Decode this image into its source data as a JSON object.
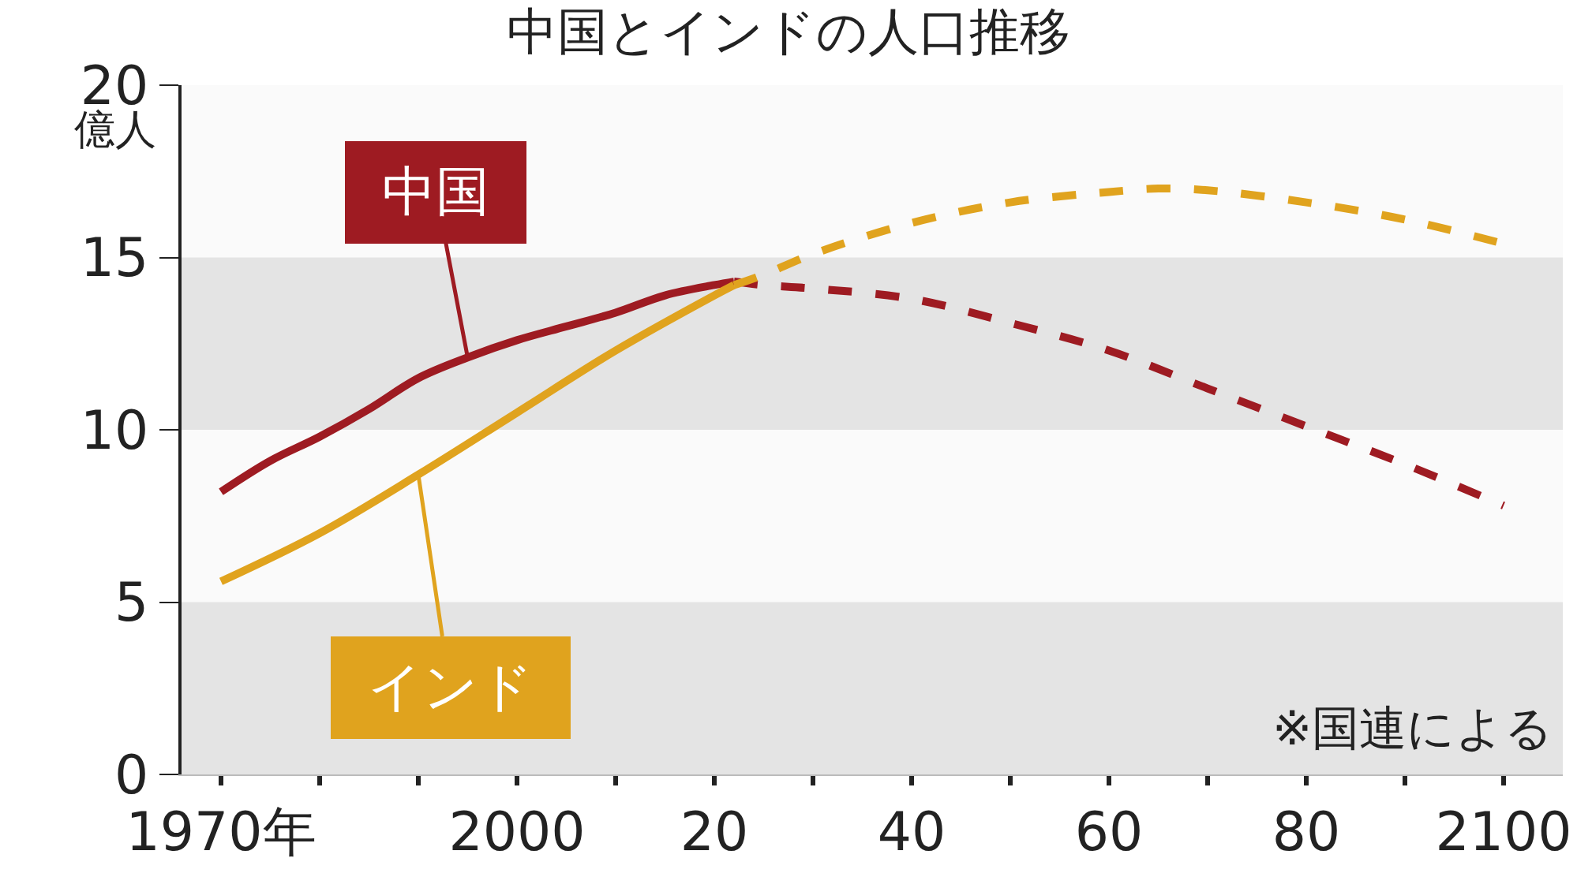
{
  "chart_data": {
    "type": "line",
    "title": "中国とインドの人口推移",
    "ylabel": "億人",
    "xlim": [
      1966,
      2106
    ],
    "ylim": [
      0,
      20
    ],
    "xticks": [
      {
        "value": 1970,
        "label": "1970年"
      },
      {
        "value": 1980,
        "label": null
      },
      {
        "value": 1990,
        "label": null
      },
      2000,
      {
        "value": 2010,
        "label": null
      },
      {
        "value": 2020,
        "label": "20"
      },
      {
        "value": 2030,
        "label": null
      },
      {
        "value": 2040,
        "label": "40"
      },
      {
        "value": 2050,
        "label": null
      },
      {
        "value": 2060,
        "label": "60"
      },
      {
        "value": 2070,
        "label": null
      },
      {
        "value": 2080,
        "label": "80"
      },
      {
        "value": 2090,
        "label": null
      },
      2100
    ],
    "yticks": [
      0,
      5,
      10,
      15,
      20
    ],
    "grid": false,
    "legend": false,
    "marker": "none",
    "bands": [
      {
        "axis": "y",
        "from": 0,
        "to": 5,
        "color": "#e4e4e4"
      },
      {
        "axis": "y",
        "from": 10,
        "to": 15,
        "color": "#e4e4e4"
      }
    ],
    "annotations": [
      "※国連による"
    ],
    "series": [
      {
        "name": "中国",
        "color": "#9e1b22",
        "line_style": "solid",
        "x": [
          1970,
          1975,
          1980,
          1985,
          1990,
          1995,
          2000,
          2005,
          2010,
          2015,
          2020,
          2022
        ],
        "values": [
          8.2,
          9.1,
          9.8,
          10.6,
          11.5,
          12.1,
          12.6,
          13.0,
          13.4,
          13.9,
          14.2,
          14.3
        ]
      },
      {
        "color": "#9e1b22",
        "line_style": "dashed",
        "x": [
          2022,
          2025,
          2030,
          2040,
          2050,
          2060,
          2070,
          2080,
          2090,
          2100
        ],
        "values": [
          14.3,
          14.2,
          14.1,
          13.8,
          13.1,
          12.3,
          11.2,
          10.1,
          9.0,
          7.8
        ]
      },
      {
        "name": "インド",
        "color": "#e0a31e",
        "line_style": "solid",
        "x": [
          1970,
          1980,
          1990,
          2000,
          2010,
          2020,
          2022
        ],
        "values": [
          5.6,
          7.0,
          8.7,
          10.5,
          12.3,
          13.9,
          14.2
        ]
      },
      {
        "color": "#e0a31e",
        "line_style": "dashed",
        "x": [
          2022,
          2025,
          2030,
          2040,
          2050,
          2060,
          2065,
          2070,
          2080,
          2090,
          2100
        ],
        "values": [
          14.2,
          14.5,
          15.1,
          16.0,
          16.6,
          16.9,
          17.0,
          16.95,
          16.6,
          16.1,
          15.4
        ]
      }
    ]
  }
}
